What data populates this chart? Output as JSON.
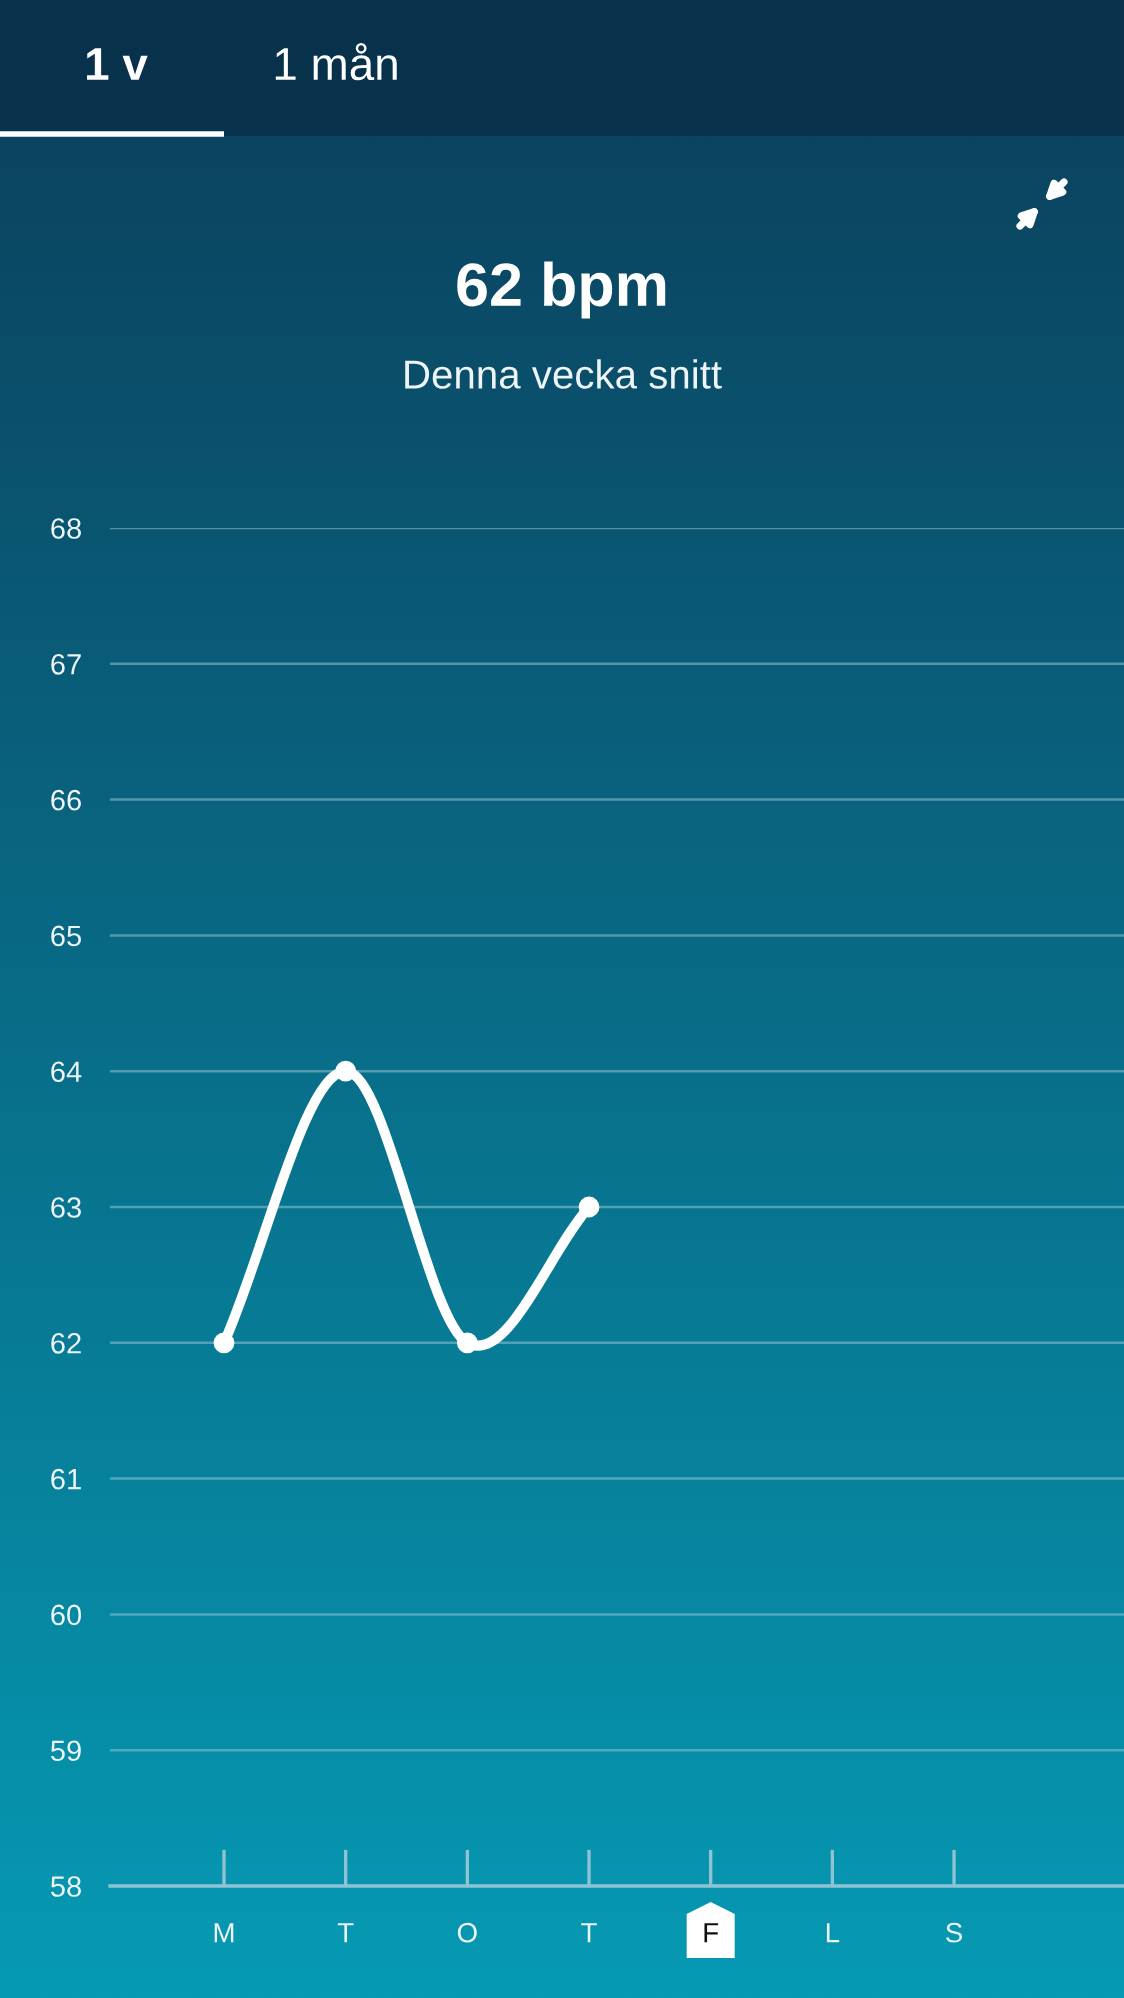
{
  "chart_data": {
    "type": "line",
    "title": "62 bpm",
    "subtitle": "Denna vecka snitt",
    "annotations": [
      "1 v",
      "1 mån"
    ],
    "categories": [
      "M",
      "T",
      "O",
      "T",
      "F",
      "L",
      "S"
    ],
    "values": [
      62,
      64,
      62,
      63,
      null,
      null,
      null
    ],
    "color": "#ffffff",
    "marker": "circle",
    "line_style": "solid",
    "ylim": [
      58,
      68
    ],
    "yticks": [
      58,
      59,
      60,
      61,
      62,
      63,
      64,
      65,
      66,
      67,
      68
    ],
    "grid": "y"
  }
}
